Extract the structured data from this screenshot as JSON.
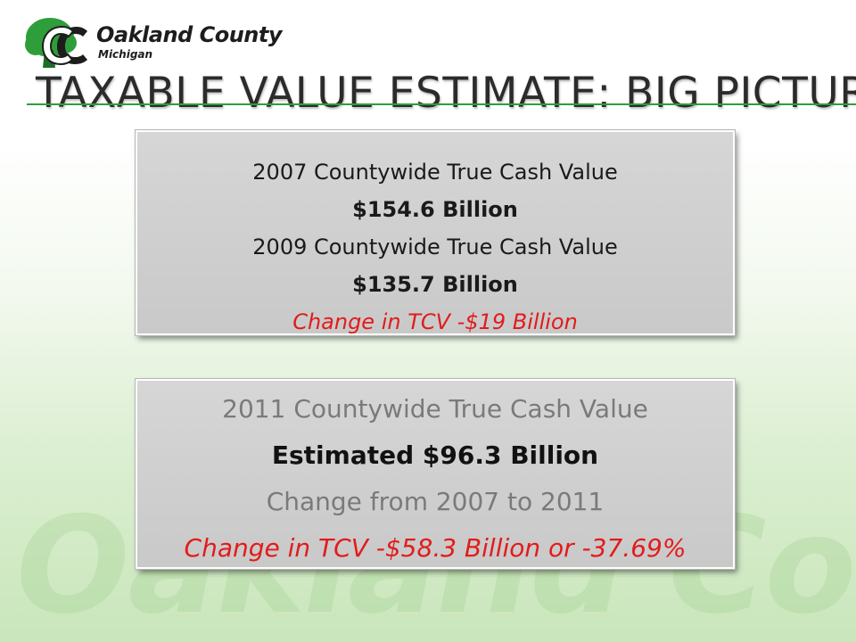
{
  "logo": {
    "name": "Oakland County",
    "subtitle": "Michigan",
    "brand_green": "#2e9e3b"
  },
  "slide": {
    "title": "TAXABLE VALUE ESTIMATE: BIG PICTURE"
  },
  "box1": {
    "line1": "2007 Countywide True Cash Value",
    "value1": "$154.6 Billion",
    "line2": "2009 Countywide True Cash Value",
    "value2": "$135.7 Billion",
    "change": "Change in TCV -$19 Billion"
  },
  "box2": {
    "line1": "2011 Countywide True Cash Value",
    "estimate": "Estimated $96.3 Billion",
    "line2": "Change from 2007 to 2011",
    "change": "Change in TCV -$58.3 Billion or -37.69%"
  },
  "watermark": {
    "text": "Oakland County"
  },
  "colors": {
    "accent_red": "#e31b1b",
    "box_grey": "#cfcfcf",
    "title_dark": "#2b2b2b"
  }
}
